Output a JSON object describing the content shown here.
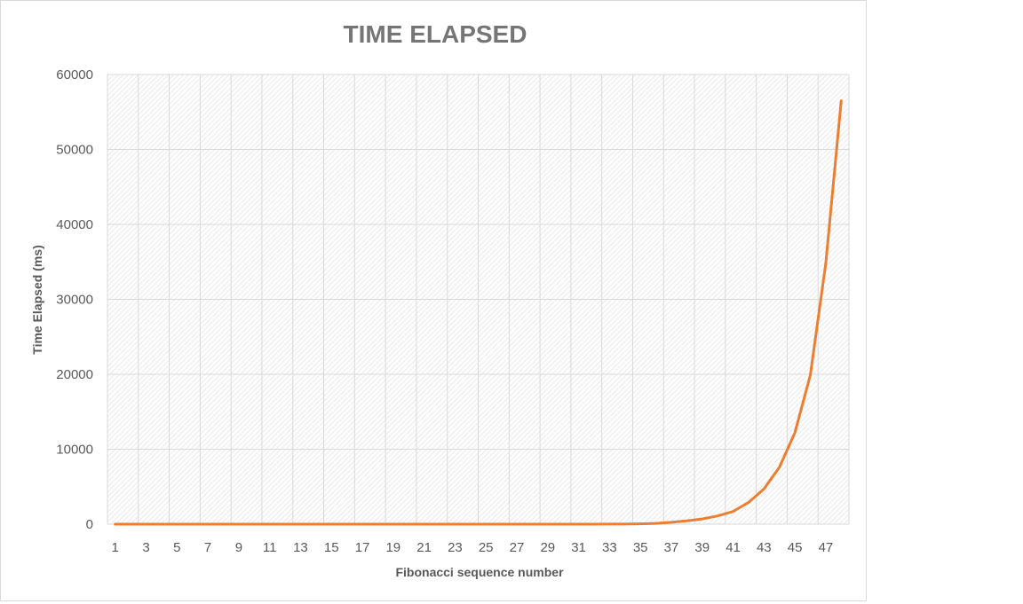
{
  "chart_data": {
    "type": "line",
    "title": "TIME ELAPSED",
    "xlabel": "Fibonacci sequence number",
    "ylabel": "Time Elapsed (ms)",
    "ylim": [
      0,
      60000
    ],
    "yticks": [
      0,
      10000,
      20000,
      30000,
      40000,
      50000,
      60000
    ],
    "xticks": [
      1,
      3,
      5,
      7,
      9,
      11,
      13,
      15,
      17,
      19,
      21,
      23,
      25,
      27,
      29,
      31,
      33,
      35,
      37,
      39,
      41,
      43,
      45,
      47
    ],
    "grid": true,
    "legend": "none",
    "series": [
      {
        "color": "#ED7D31",
        "x": [
          1,
          2,
          3,
          4,
          5,
          6,
          7,
          8,
          9,
          10,
          11,
          12,
          13,
          14,
          15,
          16,
          17,
          18,
          19,
          20,
          21,
          22,
          23,
          24,
          25,
          26,
          27,
          28,
          29,
          30,
          31,
          32,
          33,
          34,
          35,
          36,
          37,
          38,
          39,
          40,
          41,
          42,
          43,
          44,
          45,
          46,
          47,
          48
        ],
        "values": [
          0,
          0,
          0,
          0,
          0,
          0,
          0,
          0,
          0,
          0,
          0,
          0,
          0,
          0,
          0,
          0,
          0,
          0,
          0,
          0,
          0,
          0,
          0,
          0,
          0,
          0,
          0,
          0,
          0,
          0,
          0,
          0,
          10,
          20,
          50,
          100,
          250,
          450,
          700,
          1100,
          1700,
          2900,
          4700,
          7600,
          12200,
          19900,
          34800,
          56500
        ]
      }
    ]
  }
}
